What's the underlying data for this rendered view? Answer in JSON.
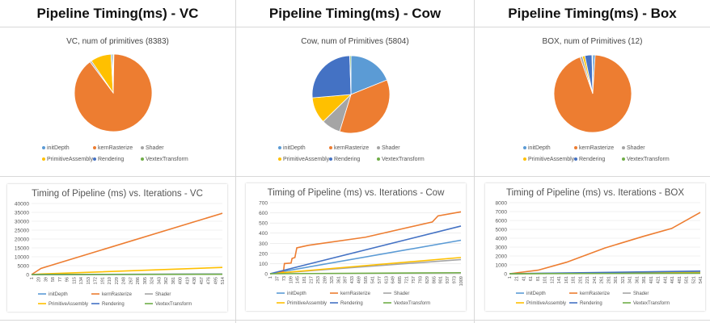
{
  "legend_labels": [
    "initDepth",
    "kernRasterize",
    "Shader",
    "PrimitiveAssembly",
    "Rendering",
    "VextexTransform"
  ],
  "colors": {
    "initDepth": "#5b9bd5",
    "kernRasterize": "#ed7d31",
    "Shader": "#a5a5a5",
    "PrimitiveAssembly": "#ffc000",
    "Rendering": "#4472c4",
    "VextexTransform": "#70ad47"
  },
  "headers": [
    "Pipeline Timing(ms) - VC",
    "Pipeline Timing(ms) - Cow",
    "Pipeline Timing(ms) - Box"
  ],
  "chart_data": [
    {
      "type": "pie",
      "title": "VC, num of primitives (8383)",
      "categories": [
        "initDepth",
        "kernRasterize",
        "Shader",
        "PrimitiveAssembly",
        "Rendering",
        "VextexTransform"
      ],
      "values": [
        0.3,
        89.5,
        0.7,
        8.6,
        0.5,
        0.4
      ]
    },
    {
      "type": "pie",
      "title": "Cow, num of Primitives (5804)",
      "categories": [
        "initDepth",
        "kernRasterize",
        "Shader",
        "PrimitiveAssembly",
        "Rendering",
        "VextexTransform"
      ],
      "values": [
        19,
        36,
        8,
        11,
        26,
        0.5
      ]
    },
    {
      "type": "pie",
      "title": "BOX, num of Primitives (12)",
      "categories": [
        "initDepth",
        "kernRasterize",
        "Shader",
        "PrimitiveAssembly",
        "Rendering",
        "VextexTransform"
      ],
      "values": [
        1,
        94,
        1,
        1,
        3,
        0.3
      ]
    },
    {
      "type": "line",
      "title": "Timing of Pipeline (ms) vs. Iterations - VC",
      "x": [
        "1",
        "20",
        "39",
        "58",
        "77",
        "96",
        "115",
        "134",
        "153",
        "172",
        "191",
        "210",
        "229",
        "248",
        "267",
        "286",
        "305",
        "324",
        "343",
        "362",
        "381",
        "400",
        "419",
        "438",
        "457",
        "476",
        "495",
        "514"
      ],
      "ylim": [
        0,
        40000
      ],
      "yticks": [
        0,
        5000,
        10000,
        15000,
        20000,
        25000,
        30000,
        35000,
        40000
      ],
      "series": [
        {
          "name": "initDepth",
          "points": [
            [
              0,
              0
            ],
            [
              1,
              150
            ]
          ]
        },
        {
          "name": "kernRasterize",
          "points": [
            [
              0,
              0
            ],
            [
              0.05,
              3500
            ],
            [
              1,
              34500
            ]
          ]
        },
        {
          "name": "Shader",
          "points": [
            [
              0,
              0
            ],
            [
              1,
              300
            ]
          ]
        },
        {
          "name": "PrimitiveAssembly",
          "points": [
            [
              0,
              0
            ],
            [
              0.05,
              300
            ],
            [
              1,
              4000
            ]
          ]
        },
        {
          "name": "Rendering",
          "points": [
            [
              0,
              0
            ],
            [
              1,
              200
            ]
          ]
        },
        {
          "name": "VextexTransform",
          "points": [
            [
              0,
              0
            ],
            [
              1,
              150
            ]
          ]
        }
      ]
    },
    {
      "type": "line",
      "title": "Timing of Pipeline (ms) vs. Iterations - Cow",
      "x": [
        "1",
        "37",
        "73",
        "109",
        "145",
        "181",
        "217",
        "253",
        "289",
        "325",
        "361",
        "397",
        "433",
        "469",
        "505",
        "541",
        "577",
        "613",
        "649",
        "685",
        "721",
        "757",
        "793",
        "829",
        "865",
        "901",
        "937",
        "973",
        "1009"
      ],
      "ylim": [
        0,
        700
      ],
      "yticks": [
        0,
        100,
        200,
        300,
        400,
        500,
        600,
        700
      ],
      "series": [
        {
          "name": "initDepth",
          "points": [
            [
              0,
              0
            ],
            [
              1,
              330
            ]
          ]
        },
        {
          "name": "kernRasterize",
          "points": [
            [
              0,
              0
            ],
            [
              0.07,
              20
            ],
            [
              0.075,
              100
            ],
            [
              0.11,
              105
            ],
            [
              0.115,
              150
            ],
            [
              0.13,
              160
            ],
            [
              0.14,
              255
            ],
            [
              0.2,
              280
            ],
            [
              0.5,
              360
            ],
            [
              0.85,
              510
            ],
            [
              0.88,
              570
            ],
            [
              1,
              610
            ]
          ]
        },
        {
          "name": "Shader",
          "points": [
            [
              0,
              0
            ],
            [
              1,
              140
            ]
          ]
        },
        {
          "name": "PrimitiveAssembly",
          "points": [
            [
              0,
              0
            ],
            [
              1,
              160
            ]
          ]
        },
        {
          "name": "Rendering",
          "points": [
            [
              0,
              0
            ],
            [
              1,
              470
            ]
          ]
        },
        {
          "name": "VextexTransform",
          "points": [
            [
              0,
              0
            ],
            [
              1,
              10
            ]
          ]
        }
      ]
    },
    {
      "type": "line",
      "title": "Timing of Pipeline (ms) vs. Iterations - BOX",
      "x": [
        "1",
        "21",
        "41",
        "61",
        "81",
        "101",
        "121",
        "141",
        "161",
        "181",
        "201",
        "221",
        "241",
        "261",
        "281",
        "301",
        "321",
        "341",
        "361",
        "381",
        "401",
        "421",
        "441",
        "461",
        "481",
        "501",
        "521",
        "541"
      ],
      "ylim": [
        0,
        8000
      ],
      "yticks": [
        0,
        1000,
        2000,
        3000,
        4000,
        5000,
        6000,
        7000,
        8000
      ],
      "series": [
        {
          "name": "initDepth",
          "points": [
            [
              0,
              0
            ],
            [
              1,
              150
            ]
          ]
        },
        {
          "name": "kernRasterize",
          "points": [
            [
              0,
              0
            ],
            [
              0.15,
              400
            ],
            [
              0.3,
              1300
            ],
            [
              0.5,
              2900
            ],
            [
              0.7,
              4200
            ],
            [
              0.85,
              5100
            ],
            [
              1,
              6900
            ]
          ]
        },
        {
          "name": "Shader",
          "points": [
            [
              0,
              0
            ],
            [
              1,
              200
            ]
          ]
        },
        {
          "name": "PrimitiveAssembly",
          "points": [
            [
              0,
              0
            ],
            [
              1,
              120
            ]
          ]
        },
        {
          "name": "Rendering",
          "points": [
            [
              0,
              0
            ],
            [
              1,
              300
            ]
          ]
        },
        {
          "name": "VextexTransform",
          "points": [
            [
              0,
              0
            ],
            [
              1,
              60
            ]
          ]
        }
      ]
    }
  ]
}
